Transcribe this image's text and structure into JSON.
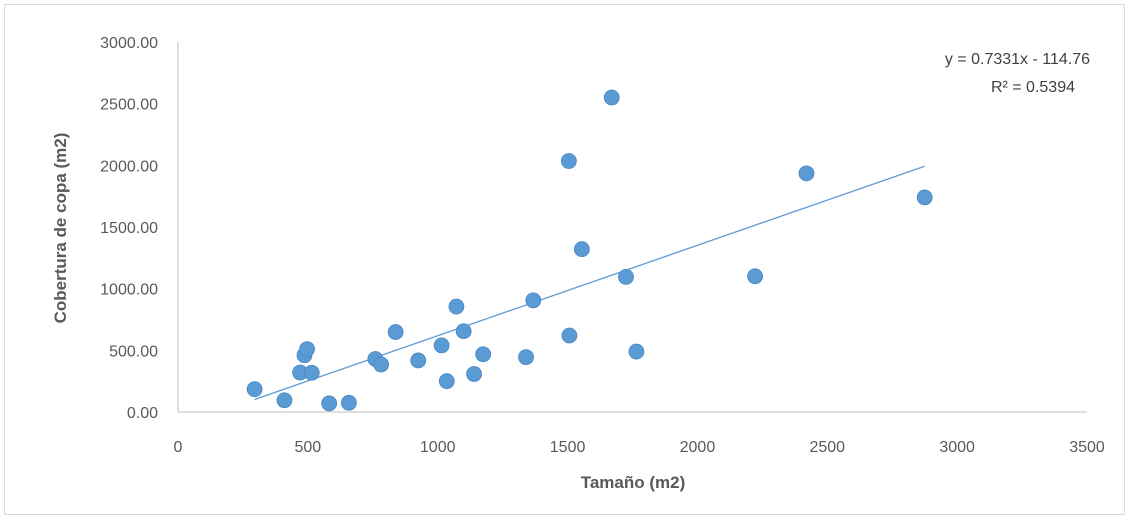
{
  "chart_data": {
    "type": "scatter",
    "xlabel": "Tamaño (m2)",
    "ylabel": "Cobertura de copa (m2)",
    "xlim": [
      0,
      3500
    ],
    "ylim": [
      0,
      3000
    ],
    "x_ticks": [
      "0",
      "500",
      "1000",
      "1500",
      "2000",
      "2500",
      "3000",
      "3500"
    ],
    "y_ticks": [
      "0.00",
      "500.00",
      "1000.00",
      "1500.00",
      "2000.00",
      "2500.00",
      "3000.00"
    ],
    "grid": false,
    "marker_color": "#5b9bd5",
    "trendline_color": "#5b9bd5",
    "series": [
      {
        "points": [
          {
            "x": 295,
            "y": 185
          },
          {
            "x": 410,
            "y": 95
          },
          {
            "x": 470,
            "y": 320
          },
          {
            "x": 487,
            "y": 460
          },
          {
            "x": 497,
            "y": 510
          },
          {
            "x": 515,
            "y": 318
          },
          {
            "x": 582,
            "y": 70
          },
          {
            "x": 658,
            "y": 75
          },
          {
            "x": 760,
            "y": 430
          },
          {
            "x": 782,
            "y": 385
          },
          {
            "x": 838,
            "y": 648
          },
          {
            "x": 925,
            "y": 418
          },
          {
            "x": 1015,
            "y": 540
          },
          {
            "x": 1035,
            "y": 250
          },
          {
            "x": 1072,
            "y": 855
          },
          {
            "x": 1100,
            "y": 655
          },
          {
            "x": 1140,
            "y": 308
          },
          {
            "x": 1175,
            "y": 468
          },
          {
            "x": 1340,
            "y": 445
          },
          {
            "x": 1368,
            "y": 905
          },
          {
            "x": 1505,
            "y": 2035
          },
          {
            "x": 1507,
            "y": 620
          },
          {
            "x": 1555,
            "y": 1320
          },
          {
            "x": 1670,
            "y": 2550
          },
          {
            "x": 1725,
            "y": 1095
          },
          {
            "x": 1765,
            "y": 490
          },
          {
            "x": 2222,
            "y": 1100
          },
          {
            "x": 2420,
            "y": 1935
          },
          {
            "x": 2875,
            "y": 1740
          }
        ]
      }
    ],
    "trendline": {
      "slope": 0.7331,
      "intercept": -114.76,
      "x_range": [
        295,
        2875
      ],
      "equation": "y = 0.7331x - 114.76",
      "r_squared": "R² = 0.5394"
    }
  }
}
